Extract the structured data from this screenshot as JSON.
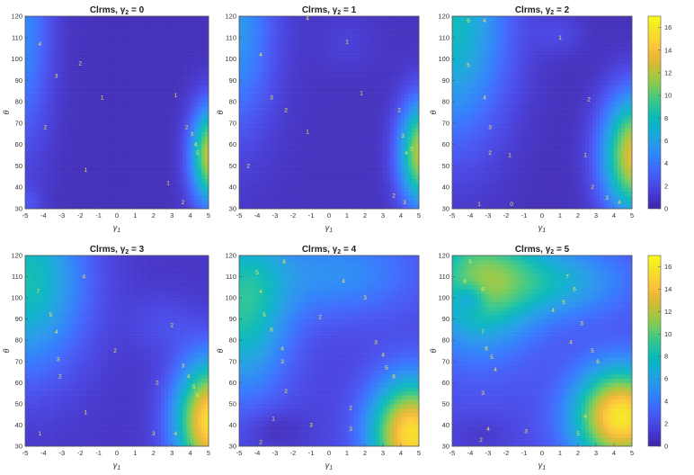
{
  "chart_data": [
    {
      "type": "heatmap",
      "title_main": "Clrms, ",
      "title_sym": "γ",
      "title_sub": "2",
      "title_tail": " = 0",
      "gamma2": 0,
      "xlabel_sym": "γ",
      "xlabel_sub": "1",
      "ylabel": "θ",
      "x_ticks": [
        "-5",
        "-4",
        "-3",
        "-2",
        "-1",
        "0",
        "1",
        "2",
        "3",
        "4",
        "5"
      ],
      "y_ticks": [
        "30",
        "40",
        "50",
        "60",
        "70",
        "80",
        "90",
        "100",
        "110",
        "120"
      ],
      "xlim": [
        -5,
        5
      ],
      "ylim": [
        30,
        120
      ],
      "contour_labels": [
        {
          "text": "4",
          "x": -4.2,
          "y": 107
        },
        {
          "text": "3",
          "x": -3.3,
          "y": 92
        },
        {
          "text": "2",
          "x": -2,
          "y": 98
        },
        {
          "text": "2",
          "x": -3.9,
          "y": 68
        },
        {
          "text": "1",
          "x": -1.7,
          "y": 48
        },
        {
          "text": "1",
          "x": -0.8,
          "y": 82
        },
        {
          "text": "1",
          "x": 3.2,
          "y": 83
        },
        {
          "text": "2",
          "x": 3.8,
          "y": 68
        },
        {
          "text": "3",
          "x": 4.1,
          "y": 65
        },
        {
          "text": "4",
          "x": 4.3,
          "y": 60
        },
        {
          "text": "5",
          "x": 4.4,
          "y": 56
        },
        {
          "text": "1",
          "x": 2.8,
          "y": 42
        },
        {
          "text": "2",
          "x": 3.6,
          "y": 33
        }
      ]
    },
    {
      "type": "heatmap",
      "title_main": "Clrms, ",
      "title_sym": "γ",
      "title_sub": "2",
      "title_tail": " = 1",
      "gamma2": 1,
      "xlabel_sym": "γ",
      "xlabel_sub": "1",
      "ylabel": "θ",
      "x_ticks": [
        "-5",
        "-4",
        "-3",
        "-2",
        "-1",
        "0",
        "1",
        "2",
        "3",
        "4",
        "5"
      ],
      "y_ticks": [
        "30",
        "40",
        "50",
        "60",
        "70",
        "80",
        "90",
        "100",
        "110",
        "120"
      ],
      "xlim": [
        -5,
        5
      ],
      "ylim": [
        30,
        120
      ],
      "contour_labels": [
        {
          "text": "4",
          "x": -1.2,
          "y": 119
        },
        {
          "text": "4",
          "x": -3.8,
          "y": 102
        },
        {
          "text": "3",
          "x": -3.2,
          "y": 82
        },
        {
          "text": "2",
          "x": -2.4,
          "y": 76
        },
        {
          "text": "1",
          "x": 1,
          "y": 108
        },
        {
          "text": "1",
          "x": -1.2,
          "y": 66
        },
        {
          "text": "1",
          "x": 1.8,
          "y": 84
        },
        {
          "text": "2",
          "x": -4.5,
          "y": 50
        },
        {
          "text": "2",
          "x": 3.9,
          "y": 76
        },
        {
          "text": "3",
          "x": 4.1,
          "y": 64
        },
        {
          "text": "4",
          "x": 4.3,
          "y": 56
        },
        {
          "text": "5",
          "x": 4.6,
          "y": 58
        },
        {
          "text": "2",
          "x": 3.6,
          "y": 36
        },
        {
          "text": "3",
          "x": 4.2,
          "y": 33
        }
      ]
    },
    {
      "type": "heatmap",
      "title_main": "Clrms, ",
      "title_sym": "γ",
      "title_sub": "2",
      "title_tail": " = 2",
      "gamma2": 2,
      "xlabel_sym": "γ",
      "xlabel_sub": "1",
      "ylabel": "θ",
      "x_ticks": [
        "-5",
        "-4",
        "-3",
        "-2",
        "-1",
        "0",
        "1",
        "2",
        "3",
        "4",
        "5"
      ],
      "y_ticks": [
        "30",
        "40",
        "50",
        "60",
        "70",
        "80",
        "90",
        "100",
        "110",
        "120"
      ],
      "xlim": [
        -5,
        5
      ],
      "ylim": [
        30,
        120
      ],
      "contour_labels": [
        {
          "text": "6",
          "x": -4.1,
          "y": 118
        },
        {
          "text": "4",
          "x": -3.2,
          "y": 118
        },
        {
          "text": "5",
          "x": -4.1,
          "y": 97
        },
        {
          "text": "4",
          "x": -3.2,
          "y": 82
        },
        {
          "text": "3",
          "x": -2.9,
          "y": 68
        },
        {
          "text": "2",
          "x": -2.9,
          "y": 56
        },
        {
          "text": "1",
          "x": 1,
          "y": 110
        },
        {
          "text": "1",
          "x": -1.8,
          "y": 55
        },
        {
          "text": "2",
          "x": 2.6,
          "y": 81
        },
        {
          "text": "1",
          "x": 2.4,
          "y": 55
        },
        {
          "text": "2",
          "x": 2.8,
          "y": 40
        },
        {
          "text": "3",
          "x": 3.6,
          "y": 35
        },
        {
          "text": "4",
          "x": 4.3,
          "y": 33
        },
        {
          "text": "1",
          "x": -3.5,
          "y": 32
        },
        {
          "text": "0",
          "x": -1.7,
          "y": 32
        }
      ]
    },
    {
      "type": "heatmap",
      "title_main": "Clrms, ",
      "title_sym": "γ",
      "title_sub": "2",
      "title_tail": " = 3",
      "gamma2": 3,
      "xlabel_sym": "γ",
      "xlabel_sub": "1",
      "ylabel": "θ",
      "x_ticks": [
        "-5",
        "-4",
        "-3",
        "-2",
        "-1",
        "0",
        "1",
        "2",
        "3",
        "4",
        "5"
      ],
      "y_ticks": [
        "30",
        "40",
        "50",
        "60",
        "70",
        "80",
        "90",
        "100",
        "110",
        "120"
      ],
      "xlim": [
        -5,
        5
      ],
      "ylim": [
        30,
        120
      ],
      "contour_labels": [
        {
          "text": "7",
          "x": -4.3,
          "y": 103
        },
        {
          "text": "4",
          "x": -1.8,
          "y": 110
        },
        {
          "text": "5",
          "x": -3.6,
          "y": 92
        },
        {
          "text": "4",
          "x": -3.3,
          "y": 84
        },
        {
          "text": "3",
          "x": -3.2,
          "y": 71
        },
        {
          "text": "2",
          "x": -3.1,
          "y": 63
        },
        {
          "text": "2",
          "x": -0.1,
          "y": 75
        },
        {
          "text": "2",
          "x": 3,
          "y": 87
        },
        {
          "text": "1",
          "x": -1.7,
          "y": 46
        },
        {
          "text": "1",
          "x": -4.2,
          "y": 36
        },
        {
          "text": "2",
          "x": 2.2,
          "y": 60
        },
        {
          "text": "3",
          "x": 3.6,
          "y": 68
        },
        {
          "text": "4",
          "x": 3.9,
          "y": 63
        },
        {
          "text": "5",
          "x": 4.2,
          "y": 58
        },
        {
          "text": "6",
          "x": 4.4,
          "y": 54
        },
        {
          "text": "3",
          "x": 2,
          "y": 36
        },
        {
          "text": "4",
          "x": 3.2,
          "y": 36
        }
      ]
    },
    {
      "type": "heatmap",
      "title_main": "Clrms, ",
      "title_sym": "γ",
      "title_sub": "2",
      "title_tail": " = 4",
      "gamma2": 4,
      "xlabel_sym": "γ",
      "xlabel_sub": "1",
      "ylabel": "θ",
      "x_ticks": [
        "-5",
        "-4",
        "-3",
        "-2",
        "-1",
        "0",
        "1",
        "2",
        "3",
        "4",
        "5"
      ],
      "y_ticks": [
        "30",
        "40",
        "50",
        "60",
        "70",
        "80",
        "90",
        "100",
        "110",
        "120"
      ],
      "xlim": [
        -5,
        5
      ],
      "ylim": [
        30,
        120
      ],
      "contour_labels": [
        {
          "text": "6",
          "x": -2.5,
          "y": 117
        },
        {
          "text": "5",
          "x": -4,
          "y": 112
        },
        {
          "text": "4",
          "x": -3.8,
          "y": 103
        },
        {
          "text": "5",
          "x": -3.6,
          "y": 92
        },
        {
          "text": "6",
          "x": -3.2,
          "y": 85
        },
        {
          "text": "4",
          "x": -2.6,
          "y": 76
        },
        {
          "text": "3",
          "x": -2.6,
          "y": 70
        },
        {
          "text": "2",
          "x": -2.4,
          "y": 56
        },
        {
          "text": "4",
          "x": 0.8,
          "y": 108
        },
        {
          "text": "3",
          "x": 2,
          "y": 100
        },
        {
          "text": "2",
          "x": -0.5,
          "y": 91
        },
        {
          "text": "3",
          "x": 2.6,
          "y": 79
        },
        {
          "text": "4",
          "x": 3,
          "y": 73
        },
        {
          "text": "5",
          "x": 3.2,
          "y": 67
        },
        {
          "text": "6",
          "x": 3.6,
          "y": 63
        },
        {
          "text": "2",
          "x": 1.2,
          "y": 48
        },
        {
          "text": "3",
          "x": -1,
          "y": 40
        },
        {
          "text": "3",
          "x": 1.2,
          "y": 38
        },
        {
          "text": "1",
          "x": -3.1,
          "y": 43
        },
        {
          "text": "2",
          "x": -3.8,
          "y": 32
        }
      ]
    },
    {
      "type": "heatmap",
      "title_main": "Clrms, ",
      "title_sym": "γ",
      "title_sub": "2",
      "title_tail": " = 5",
      "gamma2": 5,
      "xlabel_sym": "γ",
      "xlabel_sub": "1",
      "ylabel": "θ",
      "x_ticks": [
        "-5",
        "-4",
        "-3",
        "-2",
        "-1",
        "0",
        "1",
        "2",
        "3",
        "4",
        "5"
      ],
      "y_ticks": [
        "30",
        "40",
        "50",
        "60",
        "70",
        "80",
        "90",
        "100",
        "110",
        "120"
      ],
      "xlim": [
        -5,
        5
      ],
      "ylim": [
        30,
        120
      ],
      "contour_labels": [
        {
          "text": "5",
          "x": -4,
          "y": 117
        },
        {
          "text": "8",
          "x": -4.3,
          "y": 108
        },
        {
          "text": "8",
          "x": -3.3,
          "y": 104
        },
        {
          "text": "7",
          "x": -3.3,
          "y": 84
        },
        {
          "text": "6",
          "x": -3.1,
          "y": 76
        },
        {
          "text": "5",
          "x": -2.8,
          "y": 72
        },
        {
          "text": "4",
          "x": -2.6,
          "y": 66
        },
        {
          "text": "3",
          "x": -3.3,
          "y": 55
        },
        {
          "text": "7",
          "x": 1.4,
          "y": 110
        },
        {
          "text": "6",
          "x": 1.8,
          "y": 104
        },
        {
          "text": "5",
          "x": 1.2,
          "y": 98
        },
        {
          "text": "4",
          "x": 0.6,
          "y": 94
        },
        {
          "text": "3",
          "x": 2.2,
          "y": 88
        },
        {
          "text": "4",
          "x": 1.6,
          "y": 79
        },
        {
          "text": "5",
          "x": 2.8,
          "y": 75
        },
        {
          "text": "6",
          "x": 3.1,
          "y": 70
        },
        {
          "text": "4",
          "x": -3,
          "y": 38
        },
        {
          "text": "2",
          "x": -3.4,
          "y": 33
        },
        {
          "text": "3",
          "x": -0.9,
          "y": 37
        },
        {
          "text": "5",
          "x": 2,
          "y": 36
        },
        {
          "text": "4",
          "x": 2.4,
          "y": 44
        }
      ]
    }
  ],
  "colorbar": {
    "ticks": [
      "0",
      "2",
      "4",
      "6",
      "8",
      "10",
      "12",
      "14",
      "16"
    ],
    "range": [
      0,
      17
    ],
    "colormap": [
      "#3e26a8",
      "#4433c7",
      "#4743e2",
      "#4656f3",
      "#3d6bfd",
      "#2e80fa",
      "#2b92ef",
      "#1fa2e0",
      "#0db0cd",
      "#0bbab5",
      "#26c39c",
      "#48c97d",
      "#76cc5c",
      "#a2c840",
      "#cbbd36",
      "#ebb834",
      "#fdc43b",
      "#f8d92d",
      "#f5e925",
      "#f9fb15"
    ]
  }
}
